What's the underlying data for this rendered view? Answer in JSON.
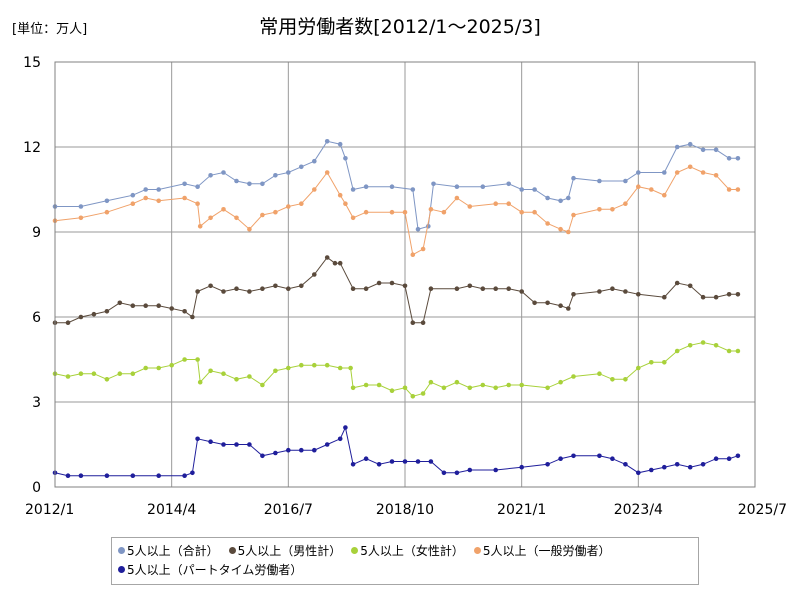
{
  "chart_data": {
    "type": "line",
    "title": "常用労働者数[2012/1～2025/3]",
    "unit_label": "[単位：万人]",
    "ylim": [
      0,
      15
    ],
    "y_ticks": [
      0,
      3,
      6,
      9,
      12,
      15
    ],
    "x_ticks": [
      {
        "label": "2012/1",
        "t": 2012.0
      },
      {
        "label": "2014/4",
        "t": 2014.25
      },
      {
        "label": "2016/7",
        "t": 2016.5
      },
      {
        "label": "2018/10",
        "t": 2018.75
      },
      {
        "label": "2021/1",
        "t": 2021.0
      },
      {
        "label": "2023/4",
        "t": 2023.25
      },
      {
        "label": "2025/7",
        "t": 2025.5
      }
    ],
    "grid": true,
    "legend_position": "bottom",
    "series": [
      {
        "name": "5人以上（合計）",
        "color": "#7f96c4",
        "points": [
          [
            2012.0,
            9.9
          ],
          [
            2012.5,
            9.9
          ],
          [
            2013.0,
            10.1
          ],
          [
            2013.5,
            10.3
          ],
          [
            2013.75,
            10.5
          ],
          [
            2014.0,
            10.5
          ],
          [
            2014.5,
            10.7
          ],
          [
            2014.75,
            10.6
          ],
          [
            2015.0,
            11.0
          ],
          [
            2015.25,
            11.1
          ],
          [
            2015.5,
            10.8
          ],
          [
            2015.75,
            10.7
          ],
          [
            2016.0,
            10.7
          ],
          [
            2016.25,
            11.0
          ],
          [
            2016.5,
            11.1
          ],
          [
            2016.75,
            11.3
          ],
          [
            2017.0,
            11.5
          ],
          [
            2017.25,
            12.2
          ],
          [
            2017.5,
            12.1
          ],
          [
            2017.6,
            11.6
          ],
          [
            2017.75,
            10.5
          ],
          [
            2018.0,
            10.6
          ],
          [
            2018.5,
            10.6
          ],
          [
            2018.9,
            10.5
          ],
          [
            2019.0,
            9.1
          ],
          [
            2019.2,
            9.2
          ],
          [
            2019.3,
            10.7
          ],
          [
            2019.75,
            10.6
          ],
          [
            2020.25,
            10.6
          ],
          [
            2020.75,
            10.7
          ],
          [
            2021.0,
            10.5
          ],
          [
            2021.25,
            10.5
          ],
          [
            2021.5,
            10.2
          ],
          [
            2021.75,
            10.1
          ],
          [
            2021.9,
            10.2
          ],
          [
            2022.0,
            10.9
          ],
          [
            2022.5,
            10.8
          ],
          [
            2023.0,
            10.8
          ],
          [
            2023.25,
            11.1
          ],
          [
            2023.75,
            11.1
          ],
          [
            2024.0,
            12.0
          ],
          [
            2024.25,
            12.1
          ],
          [
            2024.5,
            11.9
          ],
          [
            2024.75,
            11.9
          ],
          [
            2025.0,
            11.6
          ],
          [
            2025.17,
            11.6
          ]
        ]
      },
      {
        "name": "5人以上（男性計）",
        "color": "#5a4a3c",
        "points": [
          [
            2012.0,
            5.8
          ],
          [
            2012.25,
            5.8
          ],
          [
            2012.5,
            6.0
          ],
          [
            2012.75,
            6.1
          ],
          [
            2013.0,
            6.2
          ],
          [
            2013.25,
            6.5
          ],
          [
            2013.5,
            6.4
          ],
          [
            2013.75,
            6.4
          ],
          [
            2014.0,
            6.4
          ],
          [
            2014.25,
            6.3
          ],
          [
            2014.5,
            6.2
          ],
          [
            2014.65,
            6.0
          ],
          [
            2014.75,
            6.9
          ],
          [
            2015.0,
            7.1
          ],
          [
            2015.25,
            6.9
          ],
          [
            2015.5,
            7.0
          ],
          [
            2015.75,
            6.9
          ],
          [
            2016.0,
            7.0
          ],
          [
            2016.25,
            7.1
          ],
          [
            2016.5,
            7.0
          ],
          [
            2016.75,
            7.1
          ],
          [
            2017.0,
            7.5
          ],
          [
            2017.25,
            8.1
          ],
          [
            2017.4,
            7.9
          ],
          [
            2017.5,
            7.9
          ],
          [
            2017.75,
            7.0
          ],
          [
            2018.0,
            7.0
          ],
          [
            2018.25,
            7.2
          ],
          [
            2018.5,
            7.2
          ],
          [
            2018.75,
            7.1
          ],
          [
            2018.9,
            5.8
          ],
          [
            2019.1,
            5.8
          ],
          [
            2019.25,
            7.0
          ],
          [
            2019.75,
            7.0
          ],
          [
            2020.0,
            7.1
          ],
          [
            2020.25,
            7.0
          ],
          [
            2020.5,
            7.0
          ],
          [
            2020.75,
            7.0
          ],
          [
            2021.0,
            6.9
          ],
          [
            2021.25,
            6.5
          ],
          [
            2021.5,
            6.5
          ],
          [
            2021.75,
            6.4
          ],
          [
            2021.9,
            6.3
          ],
          [
            2022.0,
            6.8
          ],
          [
            2022.5,
            6.9
          ],
          [
            2022.75,
            7.0
          ],
          [
            2023.0,
            6.9
          ],
          [
            2023.25,
            6.8
          ],
          [
            2023.75,
            6.7
          ],
          [
            2024.0,
            7.2
          ],
          [
            2024.25,
            7.1
          ],
          [
            2024.5,
            6.7
          ],
          [
            2024.75,
            6.7
          ],
          [
            2025.0,
            6.8
          ],
          [
            2025.17,
            6.8
          ]
        ]
      },
      {
        "name": "5人以上（女性計）",
        "color": "#a8d13a",
        "points": [
          [
            2012.0,
            4.0
          ],
          [
            2012.25,
            3.9
          ],
          [
            2012.5,
            4.0
          ],
          [
            2012.75,
            4.0
          ],
          [
            2013.0,
            3.8
          ],
          [
            2013.25,
            4.0
          ],
          [
            2013.5,
            4.0
          ],
          [
            2013.75,
            4.2
          ],
          [
            2014.0,
            4.2
          ],
          [
            2014.25,
            4.3
          ],
          [
            2014.5,
            4.5
          ],
          [
            2014.75,
            4.5
          ],
          [
            2014.8,
            3.7
          ],
          [
            2015.0,
            4.1
          ],
          [
            2015.25,
            4.0
          ],
          [
            2015.5,
            3.8
          ],
          [
            2015.75,
            3.9
          ],
          [
            2016.0,
            3.6
          ],
          [
            2016.25,
            4.1
          ],
          [
            2016.5,
            4.2
          ],
          [
            2016.75,
            4.3
          ],
          [
            2017.0,
            4.3
          ],
          [
            2017.25,
            4.3
          ],
          [
            2017.5,
            4.2
          ],
          [
            2017.7,
            4.2
          ],
          [
            2017.75,
            3.5
          ],
          [
            2018.0,
            3.6
          ],
          [
            2018.25,
            3.6
          ],
          [
            2018.5,
            3.4
          ],
          [
            2018.75,
            3.5
          ],
          [
            2018.9,
            3.2
          ],
          [
            2019.1,
            3.3
          ],
          [
            2019.25,
            3.7
          ],
          [
            2019.5,
            3.5
          ],
          [
            2019.75,
            3.7
          ],
          [
            2020.0,
            3.5
          ],
          [
            2020.25,
            3.6
          ],
          [
            2020.5,
            3.5
          ],
          [
            2020.75,
            3.6
          ],
          [
            2021.0,
            3.6
          ],
          [
            2021.5,
            3.5
          ],
          [
            2021.75,
            3.7
          ],
          [
            2022.0,
            3.9
          ],
          [
            2022.5,
            4.0
          ],
          [
            2022.75,
            3.8
          ],
          [
            2023.0,
            3.8
          ],
          [
            2023.25,
            4.2
          ],
          [
            2023.5,
            4.4
          ],
          [
            2023.75,
            4.4
          ],
          [
            2024.0,
            4.8
          ],
          [
            2024.25,
            5.0
          ],
          [
            2024.5,
            5.1
          ],
          [
            2024.75,
            5.0
          ],
          [
            2025.0,
            4.8
          ],
          [
            2025.17,
            4.8
          ]
        ]
      },
      {
        "name": "5人以上（一般労働者）",
        "color": "#f0a26a",
        "points": [
          [
            2012.0,
            9.4
          ],
          [
            2012.5,
            9.5
          ],
          [
            2013.0,
            9.7
          ],
          [
            2013.5,
            10.0
          ],
          [
            2013.75,
            10.2
          ],
          [
            2014.0,
            10.1
          ],
          [
            2014.5,
            10.2
          ],
          [
            2014.75,
            10.0
          ],
          [
            2014.8,
            9.2
          ],
          [
            2015.0,
            9.5
          ],
          [
            2015.25,
            9.8
          ],
          [
            2015.5,
            9.5
          ],
          [
            2015.75,
            9.1
          ],
          [
            2016.0,
            9.6
          ],
          [
            2016.25,
            9.7
          ],
          [
            2016.5,
            9.9
          ],
          [
            2016.75,
            10.0
          ],
          [
            2017.0,
            10.5
          ],
          [
            2017.25,
            11.1
          ],
          [
            2017.5,
            10.3
          ],
          [
            2017.6,
            10.0
          ],
          [
            2017.75,
            9.5
          ],
          [
            2018.0,
            9.7
          ],
          [
            2018.5,
            9.7
          ],
          [
            2018.75,
            9.7
          ],
          [
            2018.9,
            8.2
          ],
          [
            2019.1,
            8.4
          ],
          [
            2019.25,
            9.8
          ],
          [
            2019.5,
            9.7
          ],
          [
            2019.75,
            10.2
          ],
          [
            2020.0,
            9.9
          ],
          [
            2020.5,
            10.0
          ],
          [
            2020.75,
            10.0
          ],
          [
            2021.0,
            9.7
          ],
          [
            2021.25,
            9.7
          ],
          [
            2021.5,
            9.3
          ],
          [
            2021.75,
            9.1
          ],
          [
            2021.9,
            9.0
          ],
          [
            2022.0,
            9.6
          ],
          [
            2022.5,
            9.8
          ],
          [
            2022.75,
            9.8
          ],
          [
            2023.0,
            10.0
          ],
          [
            2023.25,
            10.6
          ],
          [
            2023.5,
            10.5
          ],
          [
            2023.75,
            10.3
          ],
          [
            2024.0,
            11.1
          ],
          [
            2024.25,
            11.3
          ],
          [
            2024.5,
            11.1
          ],
          [
            2024.75,
            11.0
          ],
          [
            2025.0,
            10.5
          ],
          [
            2025.17,
            10.5
          ]
        ]
      },
      {
        "name": "5人以上（パートタイム労働者）",
        "color": "#1f1e9b",
        "points": [
          [
            2012.0,
            0.5
          ],
          [
            2012.25,
            0.4
          ],
          [
            2012.5,
            0.4
          ],
          [
            2013.0,
            0.4
          ],
          [
            2013.5,
            0.4
          ],
          [
            2014.0,
            0.4
          ],
          [
            2014.5,
            0.4
          ],
          [
            2014.65,
            0.5
          ],
          [
            2014.75,
            1.7
          ],
          [
            2015.0,
            1.6
          ],
          [
            2015.25,
            1.5
          ],
          [
            2015.5,
            1.5
          ],
          [
            2015.75,
            1.5
          ],
          [
            2016.0,
            1.1
          ],
          [
            2016.25,
            1.2
          ],
          [
            2016.5,
            1.3
          ],
          [
            2016.75,
            1.3
          ],
          [
            2017.0,
            1.3
          ],
          [
            2017.25,
            1.5
          ],
          [
            2017.5,
            1.7
          ],
          [
            2017.6,
            2.1
          ],
          [
            2017.75,
            0.8
          ],
          [
            2018.0,
            1.0
          ],
          [
            2018.25,
            0.8
          ],
          [
            2018.5,
            0.9
          ],
          [
            2018.75,
            0.9
          ],
          [
            2019.0,
            0.9
          ],
          [
            2019.25,
            0.9
          ],
          [
            2019.5,
            0.5
          ],
          [
            2019.75,
            0.5
          ],
          [
            2020.0,
            0.6
          ],
          [
            2020.5,
            0.6
          ],
          [
            2021.0,
            0.7
          ],
          [
            2021.5,
            0.8
          ],
          [
            2021.75,
            1.0
          ],
          [
            2022.0,
            1.1
          ],
          [
            2022.5,
            1.1
          ],
          [
            2022.75,
            1.0
          ],
          [
            2023.0,
            0.8
          ],
          [
            2023.25,
            0.5
          ],
          [
            2023.5,
            0.6
          ],
          [
            2023.75,
            0.7
          ],
          [
            2024.0,
            0.8
          ],
          [
            2024.25,
            0.7
          ],
          [
            2024.5,
            0.8
          ],
          [
            2024.75,
            1.0
          ],
          [
            2025.0,
            1.0
          ],
          [
            2025.17,
            1.1
          ]
        ]
      }
    ]
  }
}
